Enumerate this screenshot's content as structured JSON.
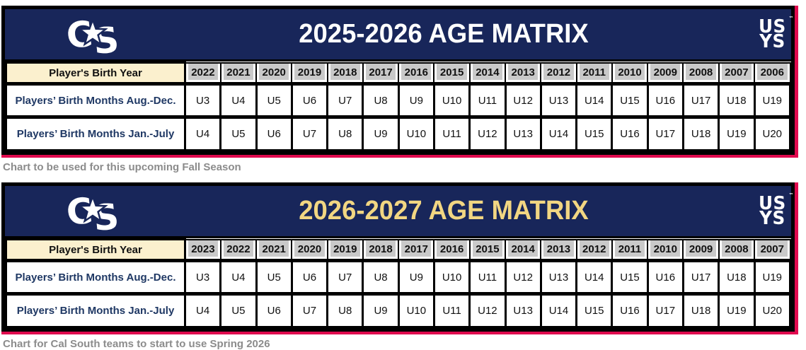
{
  "colors": {
    "navy": "#18265A",
    "crimson_accent": "#E00A4E",
    "cream_cell": "#FBF0CE",
    "gray_cell": "#C9C9C9",
    "gold_title": "#F2D682",
    "white_title": "#FFFFFF",
    "row_label_navy": "#1F3864",
    "caption_gray": "#8C8C8C"
  },
  "logos": {
    "cal_south_letters": {
      "c": "C",
      "s": "S"
    },
    "usys": {
      "line1": "US",
      "line2": "YS",
      "tm": "™"
    }
  },
  "tables": [
    {
      "title": "2025-2026 AGE MATRIX",
      "title_color": "#FFFFFF",
      "header_label": "Player's Birth Year",
      "years": [
        "2022",
        "2021",
        "2020",
        "2019",
        "2018",
        "2017",
        "2016",
        "2015",
        "2014",
        "2013",
        "2012",
        "2011",
        "2010",
        "2009",
        "2008",
        "2007",
        "2006"
      ],
      "rows": [
        {
          "label": "Players’ Birth Months Aug.-Dec.",
          "values": [
            "U3",
            "U4",
            "U5",
            "U6",
            "U7",
            "U8",
            "U9",
            "U10",
            "U11",
            "U12",
            "U13",
            "U14",
            "U15",
            "U16",
            "U17",
            "U18",
            "U19"
          ]
        },
        {
          "label": "Players’ Birth Months Jan.-July",
          "values": [
            "U4",
            "U5",
            "U6",
            "U7",
            "U8",
            "U9",
            "U10",
            "U11",
            "U12",
            "U13",
            "U14",
            "U15",
            "U16",
            "U17",
            "U18",
            "U19",
            "U20"
          ]
        }
      ],
      "caption": "Chart to be used for this upcoming Fall Season"
    },
    {
      "title": "2026-2027 AGE MATRIX",
      "title_color": "#F2D682",
      "header_label": "Player's Birth Year",
      "years": [
        "2023",
        "2022",
        "2021",
        "2020",
        "2019",
        "2018",
        "2017",
        "2016",
        "2015",
        "2014",
        "2013",
        "2012",
        "2011",
        "2010",
        "2009",
        "2008",
        "2007"
      ],
      "rows": [
        {
          "label": "Players’ Birth Months Aug.-Dec.",
          "values": [
            "U3",
            "U4",
            "U5",
            "U6",
            "U7",
            "U8",
            "U9",
            "U10",
            "U11",
            "U12",
            "U13",
            "U14",
            "U15",
            "U16",
            "U17",
            "U18",
            "U19"
          ]
        },
        {
          "label": "Players’ Birth Months Jan.-July",
          "values": [
            "U4",
            "U5",
            "U6",
            "U7",
            "U8",
            "U9",
            "U10",
            "U11",
            "U12",
            "U13",
            "U14",
            "U15",
            "U16",
            "U17",
            "U18",
            "U19",
            "U20"
          ]
        }
      ],
      "caption": "Chart for Cal South teams to start to use Spring 2026"
    }
  ]
}
